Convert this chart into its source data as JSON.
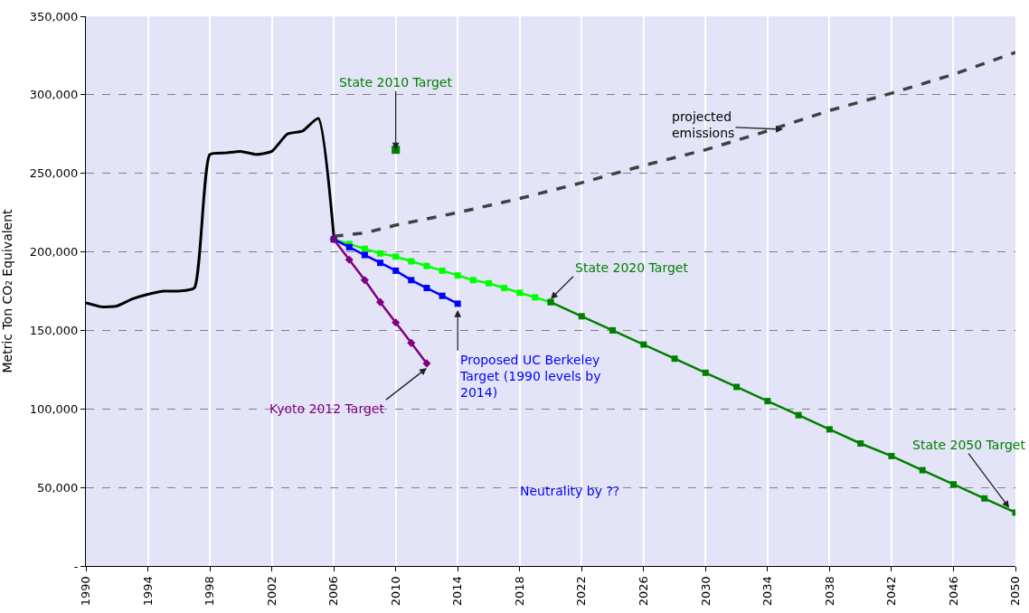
{
  "chart_data": {
    "type": "line",
    "ylabel": "Metric Ton CO₂ Equivalent",
    "xlim": [
      1990,
      2050
    ],
    "xticks": [
      1990,
      1994,
      1998,
      2002,
      2006,
      2010,
      2014,
      2018,
      2022,
      2026,
      2030,
      2034,
      2038,
      2042,
      2046,
      2050
    ],
    "ylim": [
      0,
      350000
    ],
    "yticks": [
      {
        "value": 0,
        "label": "-"
      },
      {
        "value": 50000,
        "label": "50,000"
      },
      {
        "value": 100000,
        "label": "100,000"
      },
      {
        "value": 150000,
        "label": "150,000"
      },
      {
        "value": 200000,
        "label": "200,000"
      },
      {
        "value": 250000,
        "label": "250,000"
      },
      {
        "value": 300000,
        "label": "300,000"
      },
      {
        "value": 350000,
        "label": "350,000"
      }
    ],
    "grid": true,
    "series": [
      {
        "color": "#000000",
        "line_style": "solid",
        "marker": "none",
        "x": [
          1990,
          1991,
          1992,
          1993,
          1994,
          1995,
          1996,
          1997,
          1998,
          1999,
          2000,
          2001,
          2002,
          2003,
          2004,
          2005,
          2006
        ],
        "values": [
          167500,
          165000,
          165500,
          170000,
          173000,
          175000,
          175000,
          177000,
          262000,
          263000,
          264000,
          262000,
          264000,
          275000,
          277000,
          285000,
          210000
        ]
      },
      {
        "color": "#404040",
        "line_style": "dashed",
        "marker": "none",
        "x": [
          2006,
          2008,
          2010,
          2014,
          2018,
          2022,
          2026,
          2030,
          2034,
          2038,
          2042,
          2046,
          2050
        ],
        "values": [
          210000,
          212000,
          217000,
          225000,
          234000,
          244000,
          255000,
          265000,
          277000,
          290000,
          301000,
          313000,
          327000
        ]
      },
      {
        "color": "#00ff00",
        "line_style": "solid",
        "marker": "square",
        "x": [
          2006,
          2007,
          2008,
          2009,
          2010,
          2011,
          2012,
          2013,
          2014,
          2015,
          2016,
          2017,
          2018,
          2019,
          2020
        ],
        "values": [
          208000,
          205000,
          202000,
          199000,
          197000,
          194000,
          191000,
          188000,
          185000,
          182000,
          180000,
          177000,
          174000,
          171000,
          168000
        ]
      },
      {
        "color": "#008000",
        "line_style": "solid",
        "marker": "square",
        "x": [
          2020,
          2022,
          2024,
          2026,
          2028,
          2030,
          2032,
          2034,
          2036,
          2038,
          2040,
          2042,
          2044,
          2046,
          2048,
          2050
        ],
        "values": [
          168000,
          159000,
          150000,
          141000,
          132000,
          123000,
          114000,
          105000,
          96000,
          87000,
          78000,
          70000,
          61000,
          52000,
          43000,
          34000
        ]
      },
      {
        "color": "#0000ff",
        "line_style": "solid",
        "marker": "square",
        "x": [
          2006,
          2007,
          2008,
          2009,
          2010,
          2011,
          2012,
          2013,
          2014
        ],
        "values": [
          208000,
          203000,
          198000,
          193000,
          188000,
          182000,
          177000,
          172000,
          167000
        ]
      },
      {
        "color": "#800080",
        "line_style": "solid",
        "marker": "diamond",
        "x": [
          2006,
          2007,
          2008,
          2009,
          2010,
          2011,
          2012
        ],
        "values": [
          208000,
          195000,
          182000,
          168000,
          155000,
          142000,
          129000
        ]
      },
      {
        "type": "scatter",
        "color": "#008000",
        "marker": "square",
        "x": [
          2010
        ],
        "values": [
          265000
        ]
      }
    ],
    "annotations": [
      {
        "text": "State 2010 Target",
        "x": 2010,
        "y": 265000
      },
      {
        "text": "projected emissions",
        "x": 2035,
        "y": 278000
      },
      {
        "text": "State 2020 Target",
        "x": 2020,
        "y": 170000
      },
      {
        "text": "Proposed UC Berkeley Target (1990 levels by 2014)",
        "x": 2014,
        "y": 163000
      },
      {
        "text": "Kyoto 2012 Target",
        "x": 2012,
        "y": 126000
      },
      {
        "text": "State 2050 Target",
        "x": 2049.6,
        "y": 37000
      },
      "Neutrality by ??"
    ]
  }
}
